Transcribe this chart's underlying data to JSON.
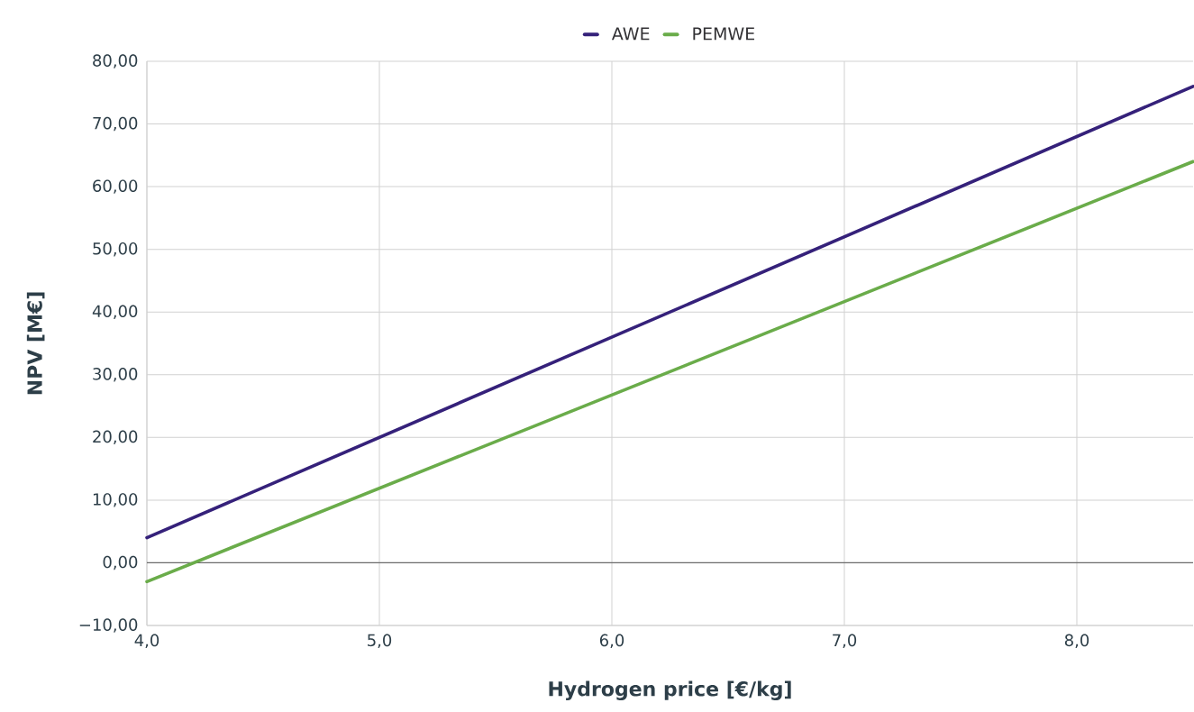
{
  "chart_data": {
    "type": "line",
    "xlabel": "Hydrogen price [€/kg]",
    "ylabel": "NPV [M€]",
    "x": [
      4.0,
      8.5
    ],
    "series": [
      {
        "name": "AWE",
        "color": "#35217a",
        "values": [
          4.0,
          76.0
        ]
      },
      {
        "name": "PEMWE",
        "color": "#6aac4a",
        "values": [
          -3.0,
          64.0
        ]
      }
    ],
    "xlim": [
      4.0,
      8.5
    ],
    "ylim": [
      -10,
      80
    ],
    "xticks": [
      {
        "value": 4,
        "label": "4,0"
      },
      {
        "value": 5,
        "label": "5,0"
      },
      {
        "value": 6,
        "label": "6,0"
      },
      {
        "value": 7,
        "label": "7,0"
      },
      {
        "value": 8,
        "label": "8,0"
      }
    ],
    "yticks": [
      {
        "value": -10,
        "label": "−10,00"
      },
      {
        "value": 0,
        "label": "0,00"
      },
      {
        "value": 10,
        "label": "10,00"
      },
      {
        "value": 20,
        "label": "20,00"
      },
      {
        "value": 30,
        "label": "30,00"
      },
      {
        "value": 40,
        "label": "40,00"
      },
      {
        "value": 50,
        "label": "50,00"
      },
      {
        "value": 60,
        "label": "60,00"
      },
      {
        "value": 70,
        "label": "70,00"
      },
      {
        "value": 80,
        "label": "80,00"
      }
    ],
    "ref_lines": [
      {
        "axis": "y",
        "value": 0,
        "color": "#6b6b6b"
      }
    ],
    "grid": true,
    "legend": "top",
    "marker": "none",
    "line_style": "solid"
  }
}
